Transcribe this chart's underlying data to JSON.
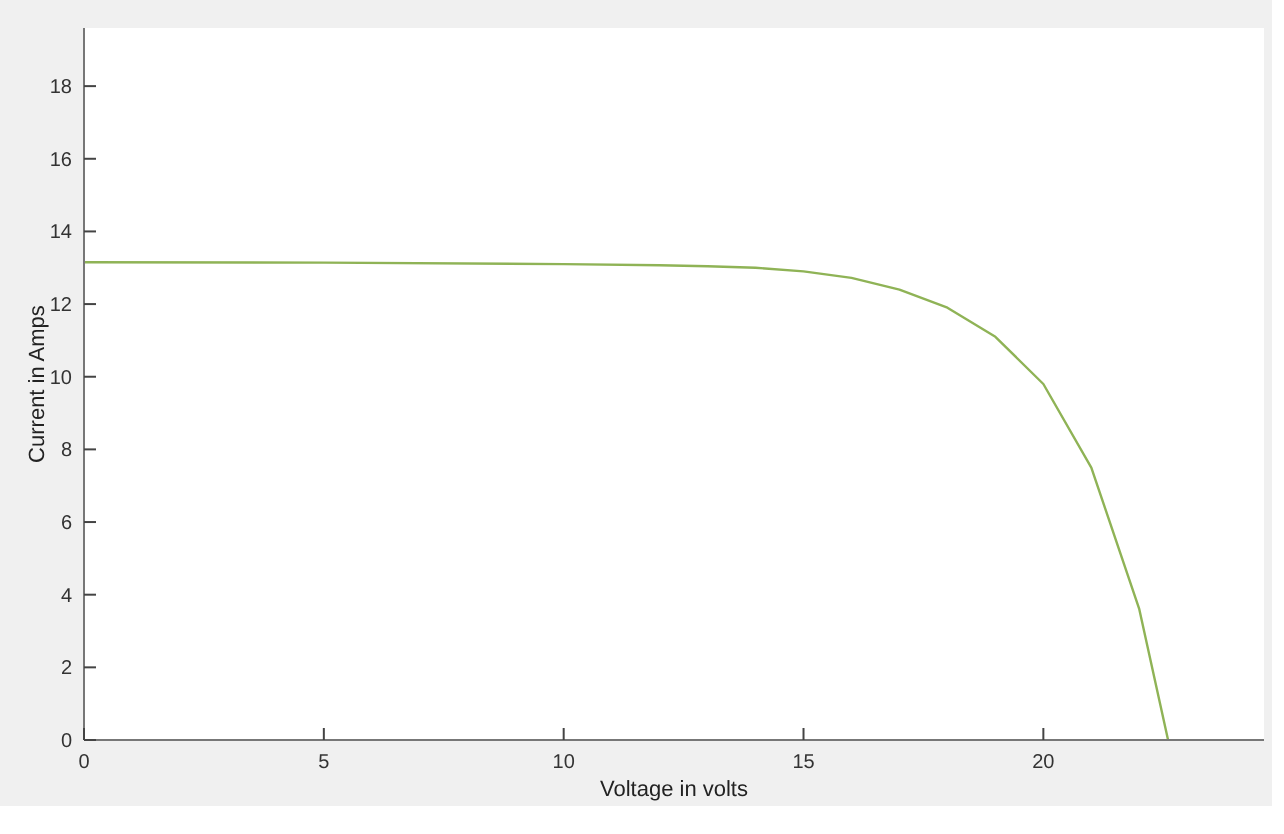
{
  "chart_data": {
    "type": "line",
    "xlabel": "Voltage in volts",
    "ylabel": "Current in Amps",
    "xlim": [
      0,
      24.6
    ],
    "ylim": [
      0,
      19.6
    ],
    "xticks": [
      0,
      5,
      10,
      15,
      20
    ],
    "yticks": [
      0,
      2,
      4,
      6,
      8,
      10,
      12,
      14,
      16,
      18
    ],
    "series": [
      {
        "color": "#8fb356",
        "x": [
          0,
          5,
          10,
          12,
          13,
          14,
          15,
          16,
          17,
          18,
          19,
          20,
          21,
          22,
          22.6
        ],
        "values": [
          13.15,
          13.14,
          13.1,
          13.07,
          13.04,
          13.0,
          12.9,
          12.72,
          12.4,
          11.9,
          11.1,
          9.8,
          7.5,
          3.6,
          0
        ]
      }
    ]
  }
}
